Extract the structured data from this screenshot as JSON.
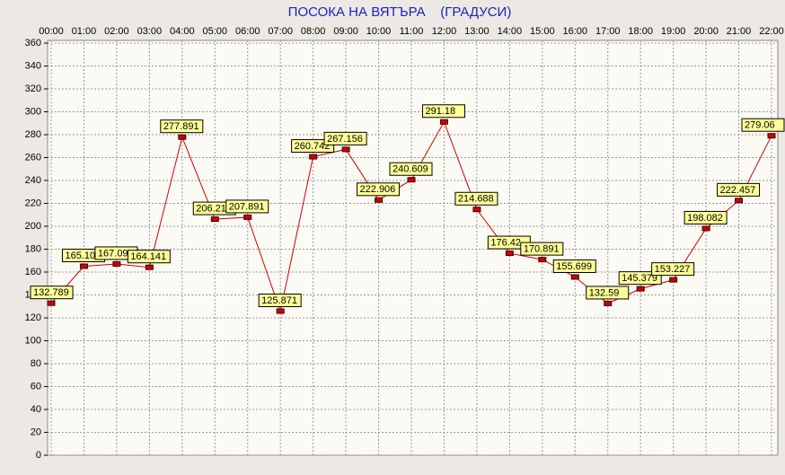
{
  "chart_data": {
    "type": "line",
    "title": "ПОСОКА НА ВЯТЪРА    (ГРАДУСИ)",
    "categories": [
      "00:00",
      "01:00",
      "02:00",
      "03:00",
      "04:00",
      "05:00",
      "06:00",
      "07:00",
      "08:00",
      "09:00",
      "10:00",
      "11:00",
      "12:00",
      "13:00",
      "14:00",
      "15:00",
      "16:00",
      "17:00",
      "18:00",
      "19:00",
      "20:00",
      "21:00",
      "22:00"
    ],
    "series": [
      {
        "name": "ПОСОКА НА ВЯТЪРА",
        "color": "#cc0000",
        "values": [
          132.789,
          165.1,
          167.09,
          164.141,
          277.891,
          206.21,
          207.891,
          125.871,
          260.742,
          267.156,
          222.906,
          240.609,
          291.18,
          214.688,
          176.42,
          170.891,
          155.699,
          132.59,
          145.379,
          153.227,
          198.082,
          222.457,
          279.06
        ],
        "value_labels": [
          "132.789",
          "165.10",
          "167.09",
          "164.141",
          "277.891",
          "206.21",
          "207.891",
          "125.871",
          "260.742",
          "267.156",
          "222.906",
          "240.609",
          "291.18",
          "214.688",
          "176.42",
          "170.891",
          "155.699",
          "132.59",
          "145.379",
          "153.227",
          "198.082",
          "222.457",
          "279.06"
        ]
      }
    ],
    "ylim": [
      0,
      360
    ],
    "yticks": [
      0,
      20,
      40,
      60,
      80,
      100,
      120,
      140,
      160,
      180,
      200,
      220,
      240,
      260,
      280,
      300,
      320,
      340,
      360
    ],
    "grid": true
  }
}
